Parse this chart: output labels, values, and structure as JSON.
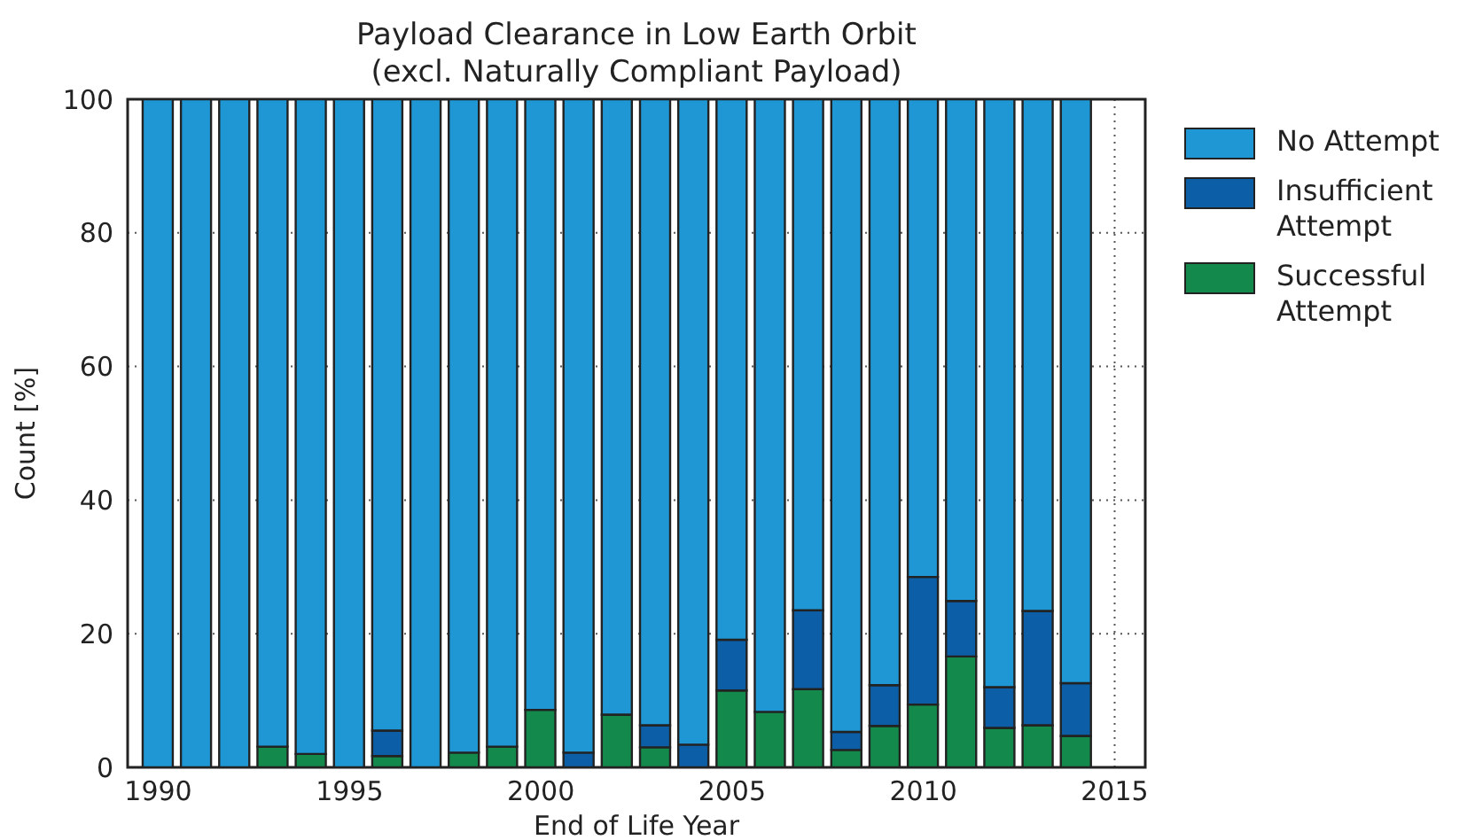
{
  "chart_data": {
    "type": "bar",
    "title": "Payload Clearance in Low Earth Orbit\n(excl. Naturally Compliant Payload)",
    "xlabel": "End of Life Year",
    "ylabel": "Count [%]",
    "x": [
      1990,
      1991,
      1992,
      1993,
      1994,
      1995,
      1996,
      1997,
      1998,
      1999,
      2000,
      2001,
      2002,
      2003,
      2004,
      2005,
      2006,
      2007,
      2008,
      2009,
      2010,
      2011,
      2012,
      2013,
      2014
    ],
    "stacked": true,
    "xlim": [
      1989.2,
      2015.8
    ],
    "xticks": [
      1990,
      1995,
      2000,
      2005,
      2010,
      2015
    ],
    "ylim": [
      0,
      100
    ],
    "yticks": [
      0,
      20,
      40,
      60,
      80,
      100
    ],
    "grid": true,
    "legend": "top right",
    "series": [
      {
        "name": "Successful Attempt",
        "color": "#138a4b",
        "values": [
          0,
          0,
          0,
          3.1,
          2.0,
          0,
          1.7,
          0,
          2.2,
          3.1,
          8.6,
          0,
          7.9,
          3.0,
          0,
          11.5,
          8.3,
          11.7,
          2.6,
          6.2,
          9.4,
          16.6,
          5.9,
          6.3,
          4.7
        ]
      },
      {
        "name": "Insufficient Attempt",
        "color": "#0c5fa6",
        "values": [
          0,
          0,
          0,
          0,
          0,
          0,
          3.8,
          0,
          0,
          0,
          0,
          2.2,
          0,
          3.3,
          3.4,
          7.6,
          0,
          11.8,
          2.7,
          6.1,
          19.1,
          8.3,
          6.1,
          17.1,
          7.9
        ]
      },
      {
        "name": "No Attempt",
        "color": "#1f97d4",
        "values": [
          100,
          100,
          100,
          96.9,
          98.0,
          100,
          94.5,
          100,
          97.8,
          96.9,
          91.4,
          97.8,
          92.1,
          93.7,
          96.6,
          80.9,
          91.7,
          76.5,
          94.7,
          87.7,
          71.5,
          75.1,
          88.0,
          76.6,
          87.4
        ]
      }
    ]
  }
}
